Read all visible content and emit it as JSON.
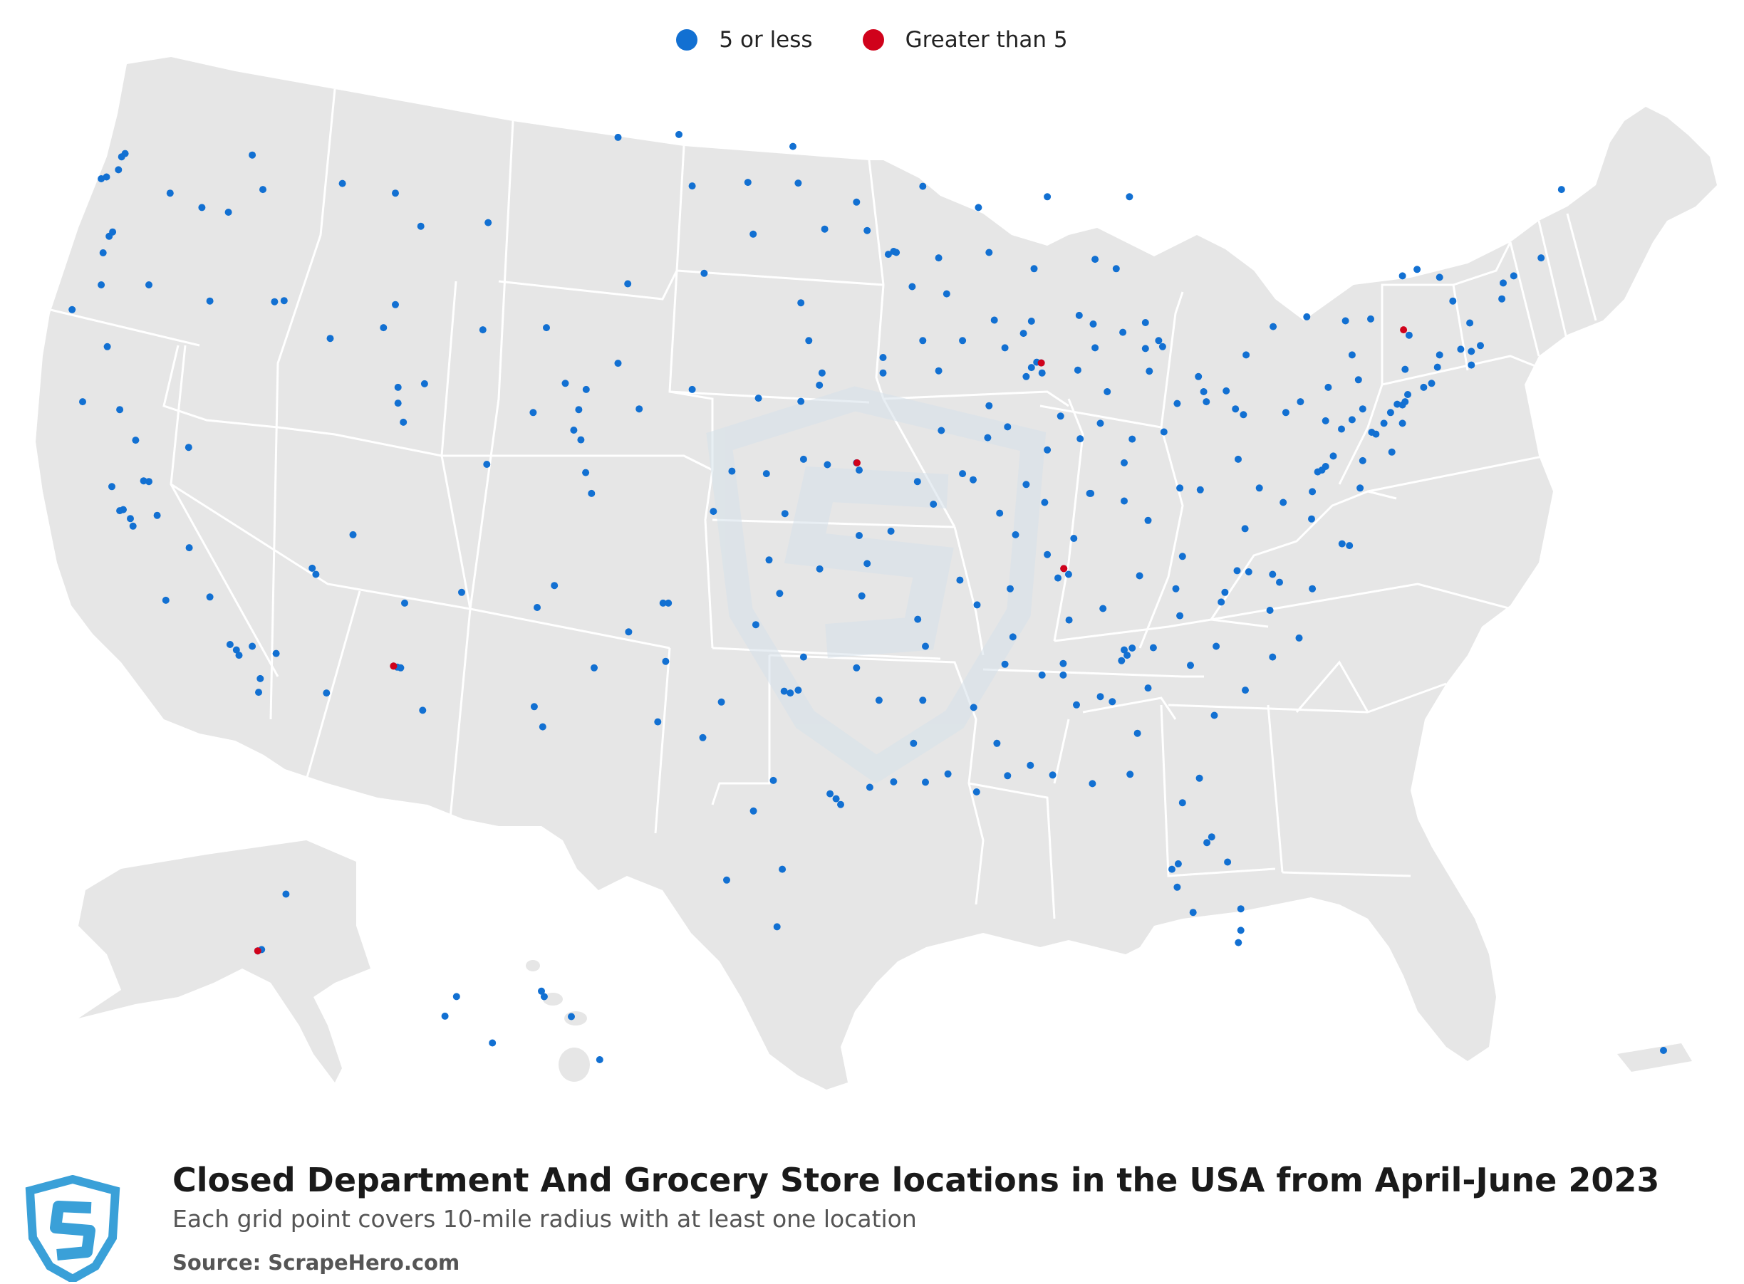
{
  "legend": {
    "items": [
      {
        "label": "5 or less",
        "color": "#1270d2"
      },
      {
        "label": "Greater than 5",
        "color": "#d0021b"
      }
    ]
  },
  "footer": {
    "title": "Closed Department And Grocery Store locations in the USA from April-June 2023",
    "subtitle": "Each grid point covers 10-mile radius with at least one location",
    "source": "Source: ScrapeHero.com"
  },
  "colors": {
    "land": "#e6e6e6",
    "border": "#ffffff",
    "logo": "#3aa0d8",
    "watermark": "#d6e1ea"
  },
  "map_data": {
    "points_5_or_less": [
      [
        -122.33,
        47.61
      ],
      [
        -122.2,
        47.7
      ],
      [
        -122.45,
        47.25
      ],
      [
        -122.9,
        47.05
      ],
      [
        -123.1,
        47.0
      ],
      [
        -120.5,
        46.6
      ],
      [
        -119.3,
        46.2
      ],
      [
        -117.4,
        47.66
      ],
      [
        -117.0,
        46.7
      ],
      [
        -118.3,
        46.07
      ],
      [
        -122.67,
        45.52
      ],
      [
        -122.8,
        45.4
      ],
      [
        -123.03,
        44.94
      ],
      [
        -123.1,
        44.05
      ],
      [
        -122.87,
        42.33
      ],
      [
        -124.2,
        43.36
      ],
      [
        -121.3,
        44.05
      ],
      [
        -119.0,
        43.6
      ],
      [
        -116.2,
        43.61
      ],
      [
        -116.56,
        43.58
      ],
      [
        -114.46,
        42.56
      ],
      [
        -112.45,
        42.86
      ],
      [
        -112.0,
        43.5
      ],
      [
        -111.9,
        41.2
      ],
      [
        -111.9,
        40.76
      ],
      [
        -111.7,
        40.23
      ],
      [
        -113.6,
        37.1
      ],
      [
        -108.5,
        45.78
      ],
      [
        -111.04,
        45.68
      ],
      [
        -112.0,
        46.6
      ],
      [
        -114.0,
        46.87
      ],
      [
        -104.8,
        41.14
      ],
      [
        -106.3,
        42.86
      ],
      [
        -108.7,
        42.8
      ],
      [
        -105.59,
        41.31
      ],
      [
        -110.9,
        41.3
      ],
      [
        -122.4,
        37.77
      ],
      [
        -122.27,
        37.8
      ],
      [
        -121.9,
        37.34
      ],
      [
        -122.0,
        37.55
      ],
      [
        -121.3,
        38.58
      ],
      [
        -121.5,
        38.6
      ],
      [
        -120.99,
        37.64
      ],
      [
        -119.78,
        36.74
      ],
      [
        -119.0,
        35.37
      ],
      [
        -120.66,
        35.28
      ],
      [
        -118.24,
        34.05
      ],
      [
        -118.0,
        33.9
      ],
      [
        -117.9,
        33.75
      ],
      [
        -117.4,
        34.0
      ],
      [
        -117.16,
        32.72
      ],
      [
        -117.1,
        33.1
      ],
      [
        -116.5,
        33.8
      ],
      [
        -122.7,
        38.44
      ],
      [
        -123.8,
        40.8
      ],
      [
        -122.4,
        40.58
      ],
      [
        -121.8,
        39.73
      ],
      [
        -119.8,
        39.53
      ],
      [
        -115.14,
        36.17
      ],
      [
        -115.0,
        36.0
      ],
      [
        -112.07,
        33.45
      ],
      [
        -111.93,
        33.42
      ],
      [
        -111.8,
        33.4
      ],
      [
        -110.97,
        32.22
      ],
      [
        -114.6,
        32.7
      ],
      [
        -111.65,
        35.2
      ],
      [
        -109.5,
        35.5
      ],
      [
        -106.65,
        35.08
      ],
      [
        -106.0,
        35.69
      ],
      [
        -106.76,
        32.32
      ],
      [
        -104.5,
        33.4
      ],
      [
        -103.2,
        34.4
      ],
      [
        -105.0,
        39.74
      ],
      [
        -104.82,
        38.83
      ],
      [
        -104.6,
        38.25
      ],
      [
        -105.27,
        40.01
      ],
      [
        -105.08,
        40.58
      ],
      [
        -108.55,
        39.06
      ],
      [
        -106.8,
        40.5
      ],
      [
        -102.8,
        40.6
      ],
      [
        -101.7,
        35.2
      ],
      [
        -101.8,
        33.58
      ],
      [
        -106.44,
        31.76
      ],
      [
        -97.33,
        32.75
      ],
      [
        -96.8,
        32.78
      ],
      [
        -97.1,
        32.7
      ],
      [
        -97.74,
        30.27
      ],
      [
        -98.49,
        29.42
      ],
      [
        -95.37,
        29.76
      ],
      [
        -95.6,
        29.9
      ],
      [
        -95.2,
        29.6
      ],
      [
        -94.1,
        30.08
      ],
      [
        -97.4,
        27.8
      ],
      [
        -97.6,
        26.2
      ],
      [
        -99.5,
        27.5
      ],
      [
        -100.4,
        31.46
      ],
      [
        -102.1,
        31.9
      ],
      [
        -99.7,
        32.45
      ],
      [
        -101.9,
        35.2
      ],
      [
        -97.5,
        35.47
      ],
      [
        -95.99,
        36.15
      ],
      [
        -97.9,
        36.4
      ],
      [
        -98.4,
        34.6
      ],
      [
        -96.6,
        33.7
      ],
      [
        -94.6,
        33.4
      ],
      [
        -97.3,
        37.69
      ],
      [
        -95.7,
        39.05
      ],
      [
        -96.6,
        39.2
      ],
      [
        -98.0,
        38.8
      ],
      [
        -99.3,
        38.87
      ],
      [
        -100.0,
        37.75
      ],
      [
        -94.6,
        39.1
      ],
      [
        -94.5,
        38.9
      ],
      [
        -93.3,
        37.2
      ],
      [
        -92.3,
        38.58
      ],
      [
        -90.2,
        38.63
      ],
      [
        -90.6,
        38.8
      ],
      [
        -94.5,
        37.08
      ],
      [
        -91.7,
        37.95
      ],
      [
        -96.0,
        41.26
      ],
      [
        -96.7,
        40.81
      ],
      [
        -98.3,
        40.9
      ],
      [
        -100.8,
        41.14
      ],
      [
        -103.6,
        41.87
      ],
      [
        -93.6,
        41.6
      ],
      [
        -91.5,
        41.66
      ],
      [
        -92.1,
        42.5
      ],
      [
        -90.6,
        42.5
      ],
      [
        -95.9,
        41.6
      ],
      [
        -96.4,
        42.5
      ],
      [
        -93.6,
        42.03
      ],
      [
        -93.2,
        44.98
      ],
      [
        -93.4,
        44.9
      ],
      [
        -93.1,
        44.95
      ],
      [
        -92.5,
        44.0
      ],
      [
        -94.2,
        45.56
      ],
      [
        -92.1,
        46.79
      ],
      [
        -94.6,
        46.35
      ],
      [
        -95.8,
        45.6
      ],
      [
        -96.8,
        46.88
      ],
      [
        -96.7,
        43.55
      ],
      [
        -98.5,
        45.46
      ],
      [
        -103.23,
        44.08
      ],
      [
        -100.35,
        44.37
      ],
      [
        -100.8,
        46.8
      ],
      [
        -101.3,
        48.23
      ],
      [
        -103.6,
        48.15
      ],
      [
        -97.0,
        47.9
      ],
      [
        -98.7,
        46.9
      ],
      [
        -89.4,
        43.07
      ],
      [
        -88.0,
        43.04
      ],
      [
        -88.3,
        42.7
      ],
      [
        -87.9,
        44.5
      ],
      [
        -89.6,
        44.95
      ],
      [
        -91.5,
        44.8
      ],
      [
        -90.0,
        46.2
      ],
      [
        -91.2,
        43.8
      ],
      [
        -87.63,
        41.88
      ],
      [
        -87.8,
        41.9
      ],
      [
        -88.0,
        41.75
      ],
      [
        -88.2,
        41.5
      ],
      [
        -89.0,
        42.3
      ],
      [
        -89.6,
        40.69
      ],
      [
        -88.9,
        40.1
      ],
      [
        -89.65,
        39.8
      ],
      [
        -91.4,
        40.0
      ],
      [
        -88.2,
        38.5
      ],
      [
        -89.2,
        37.7
      ],
      [
        -87.6,
        41.6
      ],
      [
        -86.16,
        39.77
      ],
      [
        -86.25,
        41.68
      ],
      [
        -85.14,
        41.08
      ],
      [
        -87.5,
        38.0
      ],
      [
        -85.8,
        38.25
      ],
      [
        -87.4,
        39.46
      ],
      [
        -86.9,
        40.4
      ],
      [
        -85.4,
        40.2
      ],
      [
        -84.5,
        39.1
      ],
      [
        -83.0,
        39.96
      ],
      [
        -81.7,
        41.5
      ],
      [
        -81.5,
        41.08
      ],
      [
        -83.55,
        41.65
      ],
      [
        -84.2,
        39.76
      ],
      [
        -80.65,
        41.1
      ],
      [
        -82.5,
        40.75
      ],
      [
        -81.4,
        40.8
      ],
      [
        -83.05,
        42.33
      ],
      [
        -83.2,
        42.5
      ],
      [
        -83.7,
        42.28
      ],
      [
        -84.55,
        42.73
      ],
      [
        -85.67,
        42.96
      ],
      [
        -85.6,
        42.3
      ],
      [
        -86.2,
        43.2
      ],
      [
        -83.7,
        43.0
      ],
      [
        -84.8,
        44.5
      ],
      [
        -85.6,
        44.76
      ],
      [
        -84.3,
        46.5
      ],
      [
        -87.4,
        46.5
      ],
      [
        -80.0,
        40.44
      ],
      [
        -80.3,
        40.6
      ],
      [
        -76.9,
        40.27
      ],
      [
        -75.16,
        39.95
      ],
      [
        -75.5,
        40.6
      ],
      [
        -75.9,
        40.3
      ],
      [
        -76.3,
        40.04
      ],
      [
        -78.4,
        40.5
      ],
      [
        -77.85,
        40.8
      ],
      [
        -79.9,
        42.1
      ],
      [
        -75.66,
        41.41
      ],
      [
        -76.8,
        41.2
      ],
      [
        -74.0,
        40.71
      ],
      [
        -73.9,
        40.8
      ],
      [
        -74.2,
        40.73
      ],
      [
        -74.45,
        40.5
      ],
      [
        -74.0,
        40.2
      ],
      [
        -74.7,
        40.2
      ],
      [
        -75.0,
        39.9
      ],
      [
        -74.4,
        39.4
      ],
      [
        -73.8,
        41.0
      ],
      [
        -73.75,
        42.65
      ],
      [
        -73.9,
        41.7
      ],
      [
        -75.9,
        42.1
      ],
      [
        -76.15,
        43.05
      ],
      [
        -77.61,
        43.16
      ],
      [
        -78.88,
        42.89
      ],
      [
        -75.2,
        43.1
      ],
      [
        -74.0,
        44.3
      ],
      [
        -73.45,
        44.48
      ],
      [
        -72.6,
        44.26
      ],
      [
        -72.1,
        43.6
      ],
      [
        -71.46,
        42.99
      ],
      [
        -71.06,
        42.36
      ],
      [
        -71.4,
        42.2
      ],
      [
        -71.8,
        42.26
      ],
      [
        -72.6,
        42.1
      ],
      [
        -71.4,
        41.82
      ],
      [
        -72.9,
        41.31
      ],
      [
        -72.68,
        41.76
      ],
      [
        -73.2,
        41.2
      ],
      [
        -70.25,
        43.66
      ],
      [
        -70.2,
        44.1
      ],
      [
        -69.8,
        44.3
      ],
      [
        -68.77,
        44.8
      ],
      [
        -68.0,
        46.7
      ],
      [
        -76.61,
        39.29
      ],
      [
        -76.9,
        39.0
      ],
      [
        -77.04,
        38.9
      ],
      [
        -77.2,
        38.85
      ],
      [
        -77.4,
        38.3
      ],
      [
        -77.43,
        37.54
      ],
      [
        -76.28,
        36.85
      ],
      [
        -76.0,
        36.8
      ],
      [
        -79.94,
        37.27
      ],
      [
        -78.5,
        38.0
      ],
      [
        -79.4,
        38.4
      ],
      [
        -81.63,
        38.35
      ],
      [
        -80.2,
        39.2
      ],
      [
        -82.4,
        38.4
      ],
      [
        -75.5,
        39.16
      ],
      [
        -75.6,
        38.4
      ],
      [
        -80.84,
        35.23
      ],
      [
        -80.7,
        35.5
      ],
      [
        -78.64,
        35.78
      ],
      [
        -78.9,
        36.0
      ],
      [
        -79.8,
        36.07
      ],
      [
        -80.24,
        36.1
      ],
      [
        -77.9,
        34.23
      ],
      [
        -79.0,
        35.0
      ],
      [
        -77.4,
        35.6
      ],
      [
        -82.55,
        35.6
      ],
      [
        -81.03,
        34.0
      ],
      [
        -79.93,
        32.78
      ],
      [
        -82.4,
        34.85
      ],
      [
        -78.9,
        33.7
      ],
      [
        -84.39,
        33.75
      ],
      [
        -84.2,
        33.95
      ],
      [
        -84.5,
        33.9
      ],
      [
        -84.6,
        33.6
      ],
      [
        -83.4,
        33.96
      ],
      [
        -81.1,
        32.08
      ],
      [
        -84.0,
        31.58
      ],
      [
        -83.6,
        32.84
      ],
      [
        -82.0,
        33.47
      ],
      [
        -84.95,
        32.46
      ],
      [
        -81.66,
        30.33
      ],
      [
        -82.3,
        29.65
      ],
      [
        -81.38,
        28.54
      ],
      [
        -81.2,
        28.7
      ],
      [
        -82.46,
        27.95
      ],
      [
        -82.7,
        27.8
      ],
      [
        -82.5,
        27.3
      ],
      [
        -81.9,
        26.6
      ],
      [
        -80.19,
        25.76
      ],
      [
        -80.1,
        26.1
      ],
      [
        -80.1,
        26.7
      ],
      [
        -80.6,
        28.0
      ],
      [
        -84.28,
        30.44
      ],
      [
        -87.2,
        30.42
      ],
      [
        -85.7,
        30.18
      ],
      [
        -86.8,
        33.52
      ],
      [
        -86.8,
        33.2
      ],
      [
        -86.58,
        34.73
      ],
      [
        -86.3,
        32.37
      ],
      [
        -88.04,
        30.69
      ],
      [
        -85.4,
        32.6
      ],
      [
        -87.6,
        33.2
      ],
      [
        -90.18,
        32.3
      ],
      [
        -89.3,
        31.3
      ],
      [
        -88.9,
        30.4
      ],
      [
        -88.7,
        34.26
      ],
      [
        -89.0,
        33.5
      ],
      [
        -90.07,
        29.95
      ],
      [
        -91.15,
        30.45
      ],
      [
        -92.0,
        30.22
      ],
      [
        -93.75,
        32.5
      ],
      [
        -92.1,
        32.5
      ],
      [
        -93.2,
        30.23
      ],
      [
        -92.45,
        31.3
      ],
      [
        -92.29,
        34.75
      ],
      [
        -94.2,
        36.3
      ],
      [
        -94.4,
        35.4
      ],
      [
        -90.7,
        35.84
      ],
      [
        -92.0,
        34.0
      ],
      [
        -90.05,
        35.15
      ],
      [
        -86.78,
        36.16
      ],
      [
        -86.6,
        36.0
      ],
      [
        -87.0,
        35.9
      ],
      [
        -85.3,
        35.05
      ],
      [
        -83.92,
        35.96
      ],
      [
        -82.3,
        36.5
      ],
      [
        -88.8,
        35.6
      ],
      [
        -87.4,
        36.55
      ],
      [
        -84.5,
        38.04
      ],
      [
        -85.76,
        38.25
      ],
      [
        -86.4,
        37.0
      ],
      [
        -83.6,
        37.5
      ],
      [
        -88.6,
        37.1
      ],
      [
        -149.9,
        61.22
      ],
      [
        -149.6,
        61.3
      ],
      [
        -147.7,
        64.84
      ],
      [
        -134.4,
        58.3
      ],
      [
        -135.3,
        57.05
      ],
      [
        -131.6,
        55.34
      ],
      [
        -157.86,
        21.31
      ],
      [
        -158.0,
        21.45
      ],
      [
        -155.08,
        19.7
      ],
      [
        -156.5,
        20.8
      ],
      [
        -66.1,
        18.46
      ]
    ],
    "points_greater_than_5": [
      [
        -87.63,
        41.88
      ],
      [
        -94.58,
        39.1
      ],
      [
        -86.78,
        36.16
      ],
      [
        -73.96,
        42.8
      ],
      [
        -112.07,
        33.45
      ],
      [
        -149.9,
        61.22
      ]
    ]
  }
}
